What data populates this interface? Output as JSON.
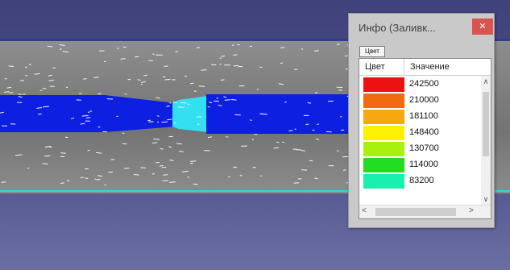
{
  "dialog": {
    "title": "Инфо (Заливк...",
    "close_glyph": "✕",
    "tab_label": "Цвет",
    "columns": {
      "color": "Цвет",
      "value": "Значение"
    },
    "rows": [
      {
        "color": "#ee1111",
        "value": "242500"
      },
      {
        "color": "#f26a10",
        "value": "210000"
      },
      {
        "color": "#f7a810",
        "value": "181100"
      },
      {
        "color": "#fff200",
        "value": "148400"
      },
      {
        "color": "#a8f010",
        "value": "130700"
      },
      {
        "color": "#22dd22",
        "value": "114000"
      },
      {
        "color": "#18f0b0",
        "value": "83200"
      }
    ],
    "scroll_up_icon": "∧",
    "scroll_down_icon": "∨",
    "scroll_left_icon": "<",
    "scroll_right_icon": ">"
  },
  "scene": {
    "background_top": "#40427c",
    "band_color": "#7b7b7b",
    "pipe_color": "#0d1fe0",
    "nozzle_color": "#32e0f0",
    "edge_line_color": "#28d8e6"
  }
}
